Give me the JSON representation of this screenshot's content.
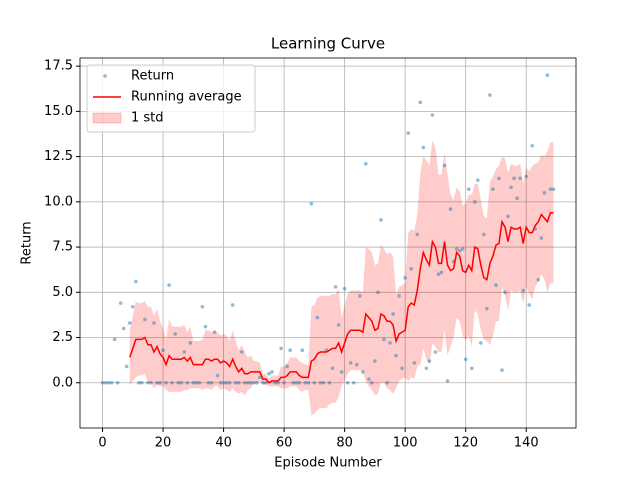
{
  "chart_data": {
    "type": "line",
    "title": "Learning Curve",
    "x_label": "Episode Number",
    "y_label": "Return",
    "x": [
      0,
      1,
      2,
      3,
      4,
      5,
      6,
      7,
      8,
      9,
      10,
      11,
      12,
      13,
      14,
      15,
      16,
      17,
      18,
      19,
      20,
      21,
      22,
      23,
      24,
      25,
      26,
      27,
      28,
      29,
      30,
      31,
      32,
      33,
      34,
      35,
      36,
      37,
      38,
      39,
      40,
      41,
      42,
      43,
      44,
      45,
      46,
      47,
      48,
      49,
      50,
      51,
      52,
      53,
      54,
      55,
      56,
      57,
      58,
      59,
      60,
      61,
      62,
      63,
      64,
      65,
      66,
      67,
      68,
      69,
      70,
      71,
      72,
      73,
      74,
      75,
      76,
      77,
      78,
      79,
      80,
      81,
      82,
      83,
      84,
      85,
      86,
      87,
      88,
      89,
      90,
      91,
      92,
      93,
      94,
      95,
      96,
      97,
      98,
      99,
      100,
      101,
      102,
      103,
      104,
      105,
      106,
      107,
      108,
      109,
      110,
      111,
      112,
      113,
      114,
      115,
      116,
      117,
      118,
      119,
      120,
      121,
      122,
      123,
      124,
      125,
      126,
      127,
      128,
      129,
      130,
      131,
      132,
      133,
      134,
      135,
      136,
      137,
      138,
      139,
      140,
      141,
      142,
      143,
      144,
      145,
      146,
      147,
      148,
      149
    ],
    "series": [
      {
        "name": "Return",
        "kind": "scatter",
        "color": "#1f77b4",
        "values": [
          0,
          0,
          0,
          0,
          2.4,
          0,
          4.4,
          3.0,
          0.9,
          3.3,
          4.2,
          5.6,
          0,
          0,
          3.5,
          0,
          0,
          3.3,
          0,
          0,
          1.8,
          0,
          5.4,
          0,
          2.7,
          0,
          0,
          1.7,
          0,
          2.2,
          0,
          0,
          0,
          4.2,
          3.1,
          0,
          0,
          2.8,
          0.4,
          0,
          0,
          0,
          0,
          4.3,
          0,
          0,
          1.7,
          0,
          0,
          0,
          0,
          0,
          0.3,
          0,
          0,
          0.5,
          0.6,
          0,
          0,
          1.9,
          0,
          0.9,
          1.8,
          0,
          0,
          0,
          1.8,
          0,
          0,
          9.9,
          0,
          3.6,
          0,
          0,
          1.8,
          0,
          0.8,
          5.3,
          3.2,
          0.6,
          5.2,
          0,
          1.1,
          0,
          1.0,
          4.8,
          0.6,
          12.1,
          0.2,
          0,
          1.2,
          5.0,
          9.0,
          2.4,
          0,
          2.2,
          3.8,
          1.5,
          4.8,
          0.8,
          5.8,
          13.8,
          6.3,
          1.1,
          8.2,
          15.5,
          13.0,
          0.8,
          1.2,
          14.8,
          1.7,
          6.0,
          6.1,
          12.0,
          0.1,
          9.6,
          6.7,
          7.4,
          7.3,
          7.4,
          1.3,
          10.7,
          0.8,
          10.0,
          11.2,
          2.2,
          8.2,
          4.1,
          15.9,
          10.7,
          5.4,
          11.3,
          0.7,
          5.0,
          9.2,
          10.8,
          11.3,
          10.2,
          11.3,
          5.1,
          11.4,
          4.3,
          13.1,
          8.5,
          5.7,
          8.0,
          10.5,
          17.0,
          10.7,
          10.7
        ]
      },
      {
        "name": "Running average",
        "kind": "line",
        "color": "#ff0000",
        "values": [
          null,
          null,
          null,
          null,
          null,
          null,
          null,
          null,
          null,
          1.4,
          1.9,
          2.4,
          2.4,
          2.4,
          2.5,
          2.1,
          2.1,
          1.7,
          2.0,
          1.6,
          1.4,
          1.0,
          1.5,
          1.3,
          1.3,
          1.3,
          1.3,
          1.4,
          1.2,
          1.4,
          1.0,
          1.0,
          1.0,
          1.0,
          1.3,
          1.3,
          1.2,
          1.3,
          1.3,
          1.1,
          1.2,
          1.1,
          0.9,
          1.3,
          0.9,
          0.6,
          0.8,
          0.5,
          0.5,
          0.6,
          0.6,
          0.6,
          0.6,
          0.2,
          0.2,
          0.0,
          0.1,
          0.1,
          0.1,
          0.3,
          0.3,
          0.4,
          0.6,
          0.6,
          0.6,
          0.4,
          0.3,
          0.3,
          0.3,
          1.2,
          1.3,
          1.6,
          1.7,
          1.7,
          1.7,
          1.8,
          1.9,
          1.9,
          2.2,
          1.7,
          2.2,
          2.7,
          2.9,
          2.9,
          2.9,
          2.9,
          2.8,
          3.8,
          3.6,
          3.4,
          2.9,
          3.0,
          3.8,
          3.7,
          3.4,
          3.4,
          3.2,
          2.3,
          2.7,
          2.8,
          2.9,
          4.2,
          4.4,
          4.3,
          5.1,
          6.3,
          7.2,
          6.8,
          6.5,
          7.8,
          7.5,
          6.6,
          6.6,
          7.8,
          6.5,
          6.2,
          6.3,
          7.2,
          7.0,
          6.2,
          6.1,
          6.5,
          6.2,
          7.5,
          7.4,
          6.5,
          5.8,
          5.7,
          6.6,
          7.0,
          7.6,
          7.7,
          8.9,
          8.6,
          7.8,
          8.6,
          8.5,
          8.5,
          8.6,
          7.7,
          8.6,
          8.3,
          8.3,
          8.7,
          8.9,
          9.3,
          9.1,
          8.9,
          9.4,
          9.4
        ]
      },
      {
        "name": "1 std",
        "kind": "band",
        "color": "#ff0000",
        "values": [
          null,
          null,
          null,
          null,
          null,
          null,
          null,
          null,
          null,
          1.5,
          1.8,
          2.1,
          2.0,
          2.0,
          2.0,
          2.1,
          2.1,
          2.0,
          2.1,
          1.8,
          1.6,
          1.4,
          2.0,
          1.8,
          1.8,
          1.8,
          1.8,
          1.8,
          1.6,
          1.7,
          1.3,
          1.3,
          1.3,
          1.4,
          1.6,
          1.6,
          1.6,
          1.5,
          1.5,
          1.5,
          1.5,
          1.5,
          1.4,
          1.6,
          1.4,
          1.2,
          1.3,
          1.2,
          0.9,
          0.9,
          0.6,
          0.6,
          0.5,
          0.3,
          0.3,
          0.2,
          0.3,
          0.3,
          0.3,
          0.6,
          0.6,
          0.7,
          0.8,
          0.8,
          0.8,
          0.8,
          0.8,
          0.7,
          0.7,
          3.0,
          3.0,
          3.1,
          3.1,
          3.1,
          3.1,
          3.0,
          3.0,
          3.0,
          3.0,
          1.9,
          2.1,
          2.2,
          2.2,
          2.2,
          2.2,
          2.2,
          2.2,
          3.7,
          3.8,
          3.8,
          3.6,
          3.6,
          3.8,
          3.7,
          3.7,
          3.8,
          3.8,
          2.6,
          2.6,
          2.6,
          2.6,
          4.1,
          4.1,
          4.1,
          4.2,
          5.3,
          5.3,
          5.5,
          5.5,
          5.6,
          5.5,
          4.9,
          4.9,
          4.9,
          5.0,
          4.2,
          3.8,
          3.6,
          3.6,
          3.6,
          3.8,
          3.9,
          4.2,
          3.5,
          3.6,
          3.6,
          3.4,
          3.4,
          4.5,
          4.4,
          4.2,
          4.3,
          3.6,
          3.8,
          3.8,
          3.5,
          3.5,
          3.5,
          3.5,
          3.3,
          3.3,
          3.4,
          3.7,
          3.4,
          3.3,
          3.3,
          3.4,
          3.9,
          3.9,
          3.9
        ]
      }
    ],
    "xlim": [
      -7.45,
      156.45
    ],
    "ylim": [
      -2.5,
      17.95
    ],
    "xticks": [
      0,
      20,
      40,
      60,
      80,
      100,
      120,
      140
    ],
    "yticks": [
      {
        "value": 0,
        "label": "0.0"
      },
      2.5,
      {
        "value": 5,
        "label": "5.0"
      },
      7.5,
      {
        "value": 10,
        "label": "10.0"
      },
      12.5,
      {
        "value": 15,
        "label": "15.0"
      },
      17.5
    ],
    "grid": true,
    "legend": "upper left"
  }
}
